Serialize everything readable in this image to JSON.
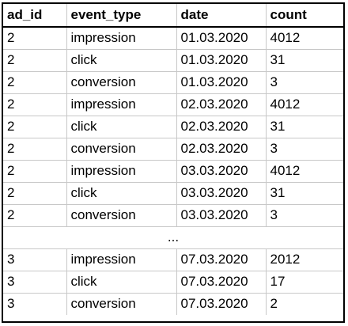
{
  "table": {
    "headers": [
      "ad_id",
      "event_type",
      "date",
      "count"
    ],
    "rows_top": [
      [
        "2",
        "impression",
        "01.03.2020",
        "4012"
      ],
      [
        "2",
        "click",
        "01.03.2020",
        "31"
      ],
      [
        "2",
        "conversion",
        "01.03.2020",
        "3"
      ],
      [
        "2",
        "impression",
        "02.03.2020",
        "4012"
      ],
      [
        "2",
        "click",
        "02.03.2020",
        "31"
      ],
      [
        "2",
        "conversion",
        "02.03.2020",
        "3"
      ],
      [
        "2",
        "impression",
        "03.03.2020",
        "4012"
      ],
      [
        "2",
        "click",
        "03.03.2020",
        "31"
      ],
      [
        "2",
        "conversion",
        "03.03.2020",
        "3"
      ]
    ],
    "ellipsis": "...",
    "rows_bottom": [
      [
        "3",
        "impression",
        "07.03.2020",
        "2012"
      ],
      [
        "3",
        "click",
        "07.03.2020",
        "17"
      ],
      [
        "3",
        "conversion",
        "07.03.2020",
        "2"
      ]
    ]
  },
  "colors": {
    "border": "#000000",
    "grid": "#c8c8c8",
    "background": "#ffffff"
  }
}
